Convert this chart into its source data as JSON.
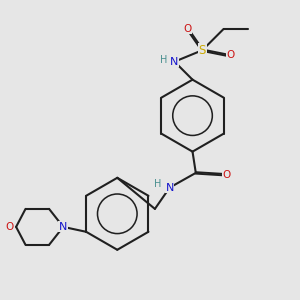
{
  "background_color": "#e6e6e6",
  "atom_colors": {
    "C": "#202020",
    "H": "#4a9090",
    "N": "#1414cc",
    "O": "#cc1414",
    "S": "#ccaa00"
  },
  "figsize": [
    3.0,
    3.0
  ],
  "dpi": 100
}
